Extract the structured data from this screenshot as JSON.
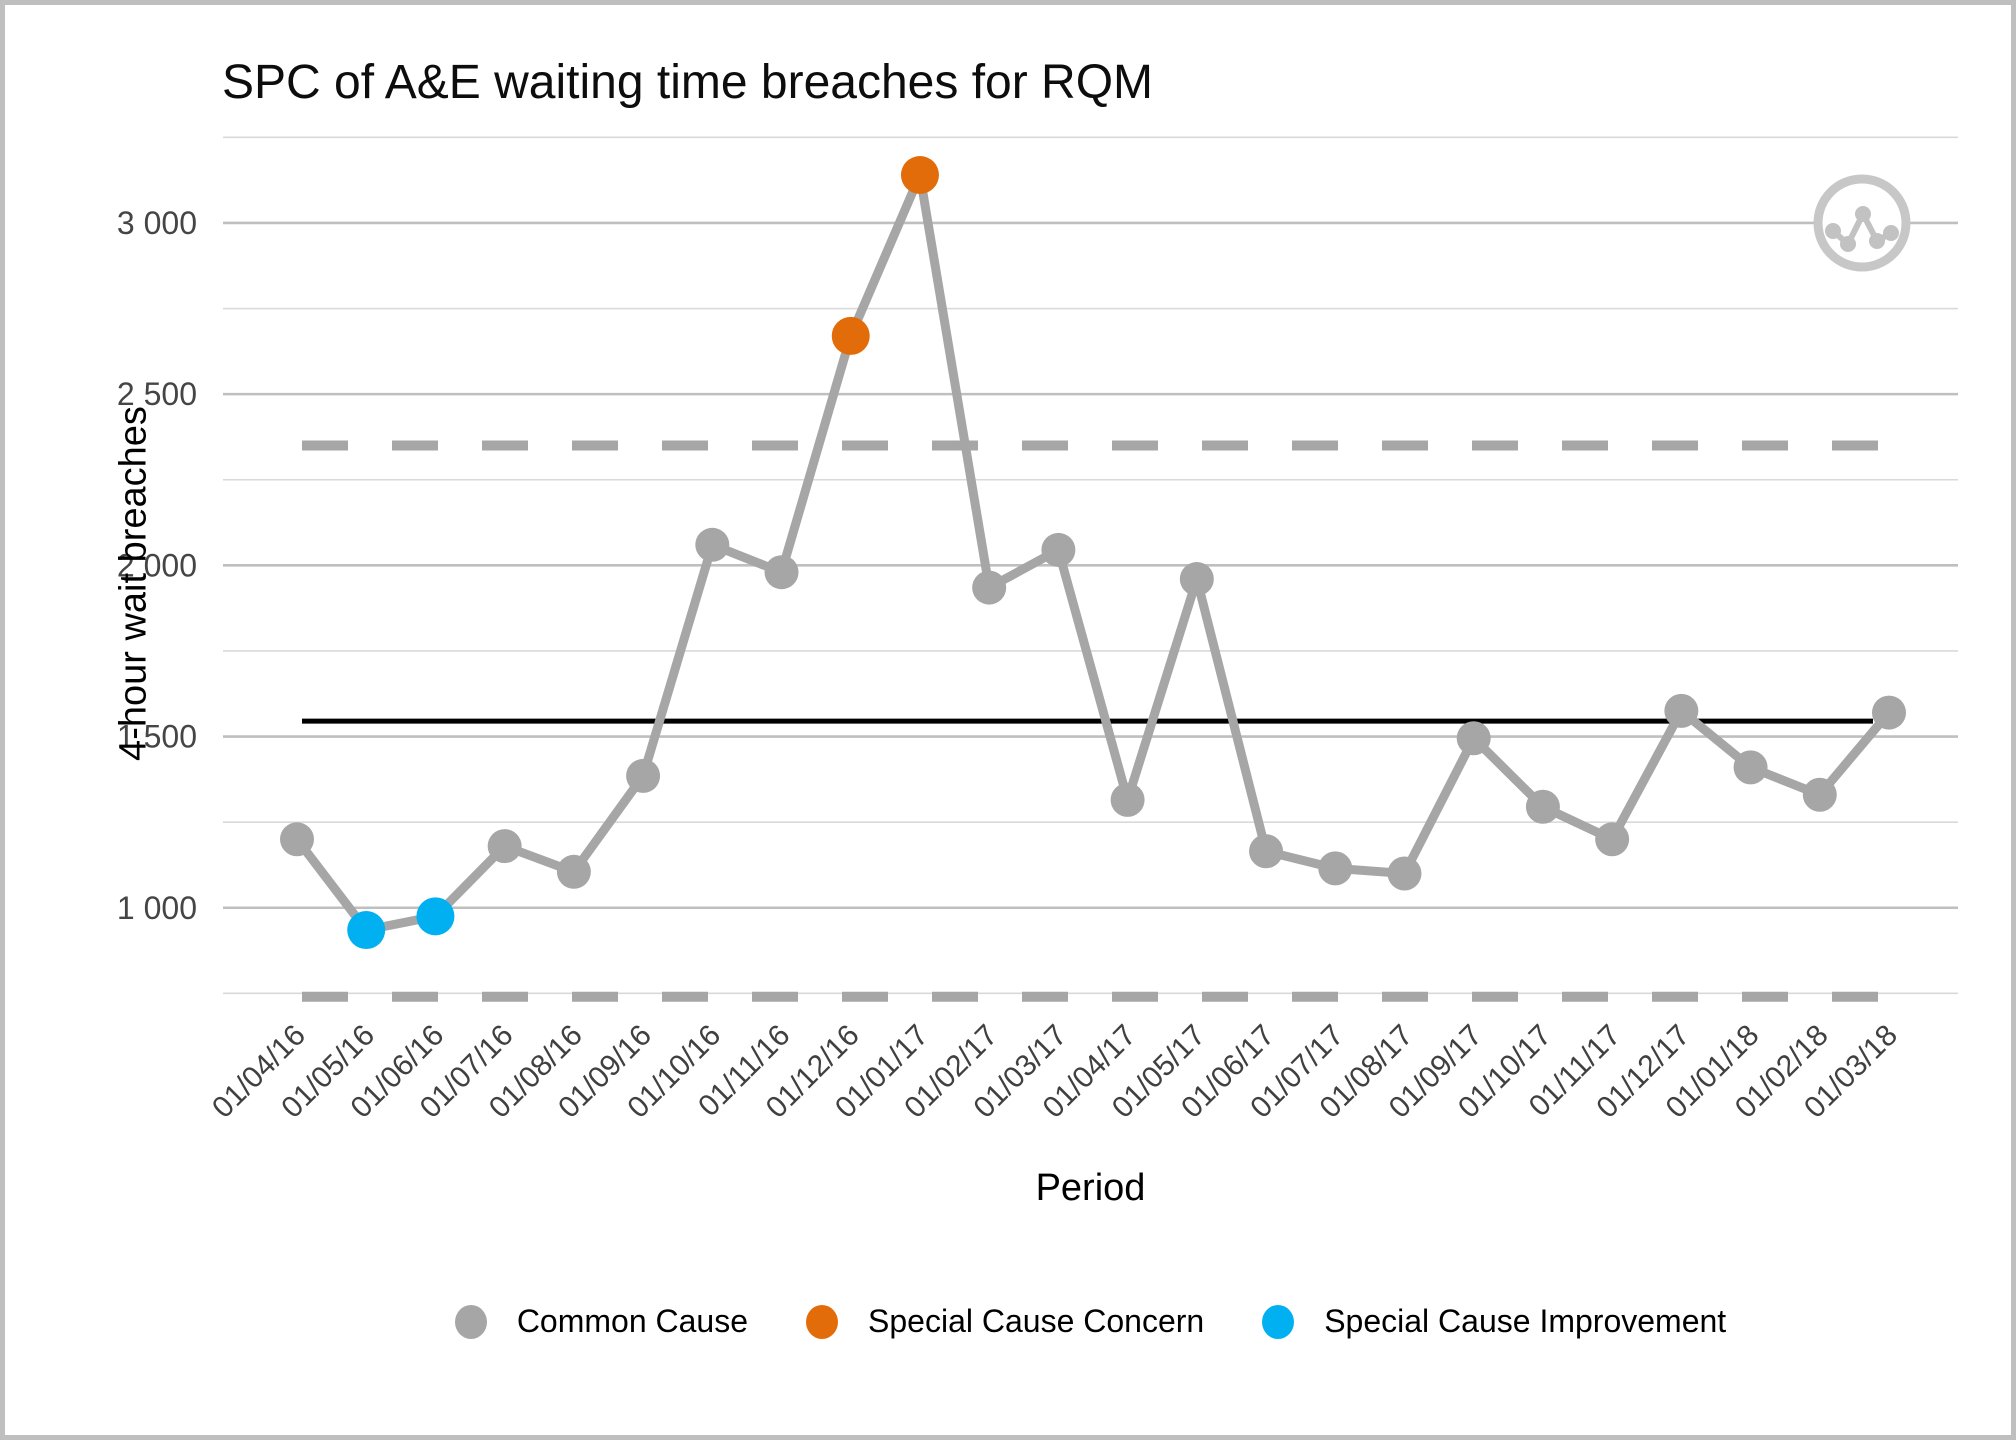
{
  "frame": {
    "background": "#ffffff",
    "border_color": "#bfbfbf"
  },
  "title": "SPC of A&E waiting time breaches for RQM",
  "icon": {
    "name": "spc-line-chart-icon",
    "ring_color": "#c7c7c7",
    "glyph_color": "#c2c2c2"
  },
  "chart_data": {
    "type": "line",
    "title": "SPC of A&E waiting time breaches for RQM",
    "xlabel": "Period",
    "ylabel": "4-hour wait breaches",
    "categories": [
      "01/04/16",
      "01/05/16",
      "01/06/16",
      "01/07/16",
      "01/08/16",
      "01/09/16",
      "01/10/16",
      "01/11/16",
      "01/12/16",
      "01/01/17",
      "01/02/17",
      "01/03/17",
      "01/04/17",
      "01/05/17",
      "01/06/17",
      "01/07/17",
      "01/08/17",
      "01/09/17",
      "01/10/17",
      "01/11/17",
      "01/12/17",
      "01/01/18",
      "01/02/18",
      "01/03/18"
    ],
    "series": [
      {
        "name": "4-hour wait breaches",
        "values": [
          1200,
          935,
          975,
          1180,
          1105,
          1385,
          2060,
          1980,
          2670,
          3140,
          1935,
          2045,
          1315,
          1960,
          1165,
          1115,
          1100,
          1495,
          1295,
          1200,
          1575,
          1410,
          1330,
          1570
        ]
      }
    ],
    "point_types": [
      "common",
      "improvement",
      "improvement",
      "common",
      "common",
      "common",
      "common",
      "common",
      "concern",
      "concern",
      "common",
      "common",
      "common",
      "common",
      "common",
      "common",
      "common",
      "common",
      "common",
      "common",
      "common",
      "common",
      "common",
      "common"
    ],
    "center_line": 1545,
    "upper_control_limit": 2350,
    "lower_control_limit": 740,
    "ylim": [
      716,
      3286
    ],
    "yticks_major": [
      1000,
      1500,
      2000,
      2500,
      3000
    ],
    "ytick_labels": [
      "1 000",
      "1 500",
      "2 000",
      "2 500",
      "3 000"
    ],
    "yticks_minor": [
      750,
      1250,
      1750,
      2250,
      2750,
      3250
    ],
    "grid": "horizontal",
    "legend_position": "bottom",
    "colors": {
      "common": "#a6a6a6",
      "concern": "#e36c0a",
      "improvement": "#00b0f0",
      "line": "#a6a6a6",
      "center_line": "#000000",
      "limit_line": "#a6a6a6",
      "grid_major": "#bfbfbf",
      "grid_minor": "#d9d9d9",
      "tick_text": "#404040"
    }
  },
  "legend": {
    "items": [
      {
        "label": "Common Cause",
        "color": "#a6a6a6"
      },
      {
        "label": "Special Cause Concern",
        "color": "#e36c0a"
      },
      {
        "label": "Special Cause Improvement",
        "color": "#00b0f0"
      }
    ]
  }
}
